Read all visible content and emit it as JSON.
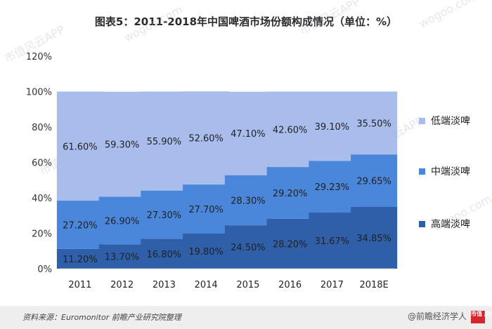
{
  "chart_data": {
    "type": "bar",
    "stacked": true,
    "title": "图表5：2011-2018年中国啤酒市场份额构成情况（单位：%）",
    "categories": [
      "2011",
      "2012",
      "2013",
      "2014",
      "2015",
      "2016",
      "2017",
      "2018E"
    ],
    "series": [
      {
        "name": "高端淡啤",
        "values": [
          11.2,
          13.7,
          16.8,
          19.8,
          24.5,
          28.2,
          31.67,
          34.85
        ],
        "labels": [
          "11.20%",
          "13.70%",
          "16.80%",
          "19.80%",
          "24.50%",
          "28.20%",
          "31.67%",
          "34.85%"
        ],
        "color": "#2e5fa8"
      },
      {
        "name": "中端淡啤",
        "values": [
          27.2,
          26.9,
          27.3,
          27.7,
          28.3,
          29.2,
          29.23,
          29.65
        ],
        "labels": [
          "27.20%",
          "26.90%",
          "27.30%",
          "27.70%",
          "28.30%",
          "29.20%",
          "29.23%",
          "29.65%"
        ],
        "color": "#4a86d9"
      },
      {
        "name": "低端淡啤",
        "values": [
          61.6,
          59.3,
          55.9,
          52.6,
          47.1,
          42.6,
          39.1,
          35.5
        ],
        "labels": [
          "61.60%",
          "59.30%",
          "55.90%",
          "52.60%",
          "47.10%",
          "42.60%",
          "39.10%",
          "35.50%"
        ],
        "color": "#a9bdec"
      }
    ],
    "ylim": [
      0,
      120
    ],
    "yticks": [
      "0%",
      "20%",
      "40%",
      "60%",
      "80%",
      "100%",
      "120%"
    ],
    "ytick_values": [
      0,
      20,
      40,
      60,
      80,
      100,
      120
    ],
    "grid": false,
    "legend_position": "right",
    "legend_order": [
      "低端淡啤",
      "中端淡啤",
      "高端淡啤"
    ]
  },
  "footer": {
    "source": "资料来源：Euromonitor 前瞻产业研究院整理",
    "brand": "@前瞻经济学人",
    "brand_logo": "市值 风云"
  },
  "watermark": {
    "texts": [
      "市值风云APP",
      "wogoo.com"
    ],
    "color": "#b0b8c6"
  }
}
